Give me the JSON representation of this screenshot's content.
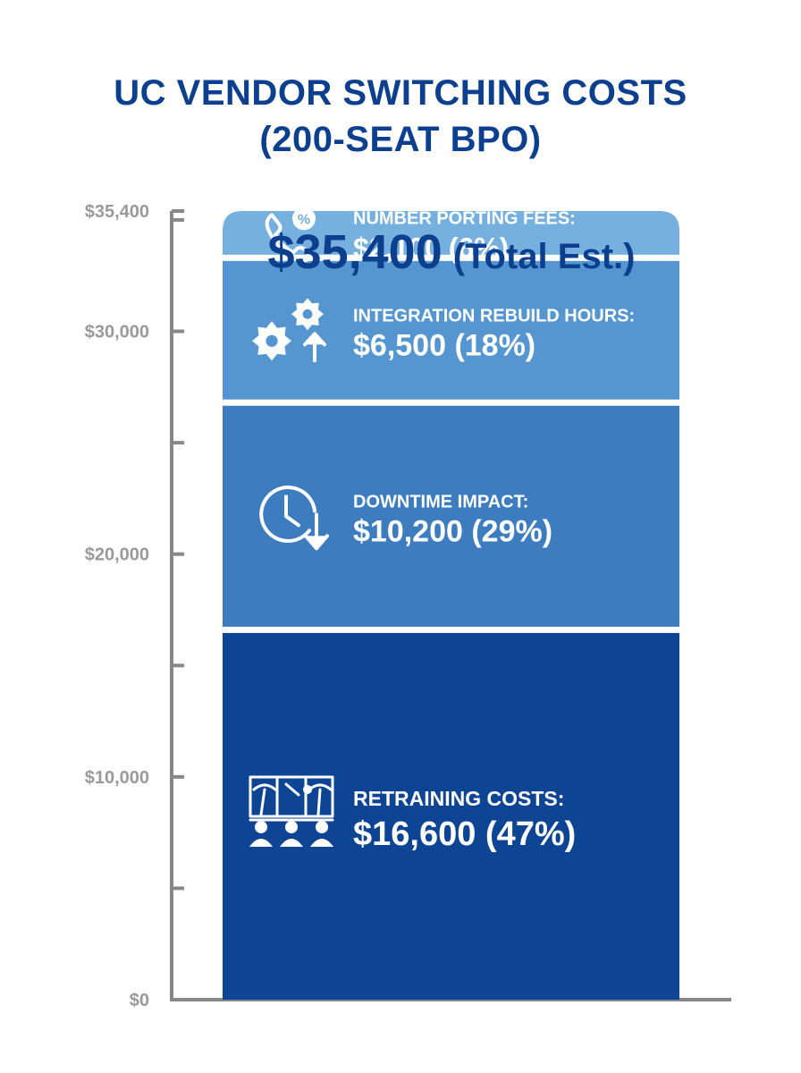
{
  "header": {
    "title_line1": "UC VENDOR SWITCHING COSTS",
    "title_line2": "(200-SEAT BPO)"
  },
  "chart_data": {
    "type": "bar",
    "stacked": true,
    "ylim": [
      0,
      35400
    ],
    "y_tick_labels": [
      {
        "value": 35400,
        "label": "$35,400"
      },
      {
        "value": 30000,
        "label": "$30,000"
      },
      {
        "value": 20000,
        "label": "$20,000"
      },
      {
        "value": 10000,
        "label": "$10,000"
      },
      {
        "value": 0,
        "label": "$0"
      }
    ],
    "total": {
      "value": 35400,
      "amount_label": "$35,400",
      "suffix_label": "(Total Est.)"
    },
    "segments": [
      {
        "name": "RETRAINING COSTS:",
        "value": 16600,
        "value_label": "$16,600 (47%)",
        "color": "#0d4594",
        "icon": "training-icon"
      },
      {
        "name": "DOWNTIME IMPACT:",
        "value": 10200,
        "value_label": "$10,200 (29%)",
        "color": "#3d7dbf",
        "icon": "clock-down-icon"
      },
      {
        "name": "INTEGRATION REBUILD HOURS:",
        "value": 6500,
        "value_label": "$6,500 (18%)",
        "color": "#5596d0",
        "icon": "gears-icon"
      },
      {
        "name": "NUMBER PORTING FEES:",
        "value": 2100,
        "value_label": "$2,100 (6%)",
        "color": "#76b0df",
        "icon": "phone-percent-icon"
      }
    ],
    "axis_color": "#888888",
    "title_color": "#0d3f8f"
  }
}
